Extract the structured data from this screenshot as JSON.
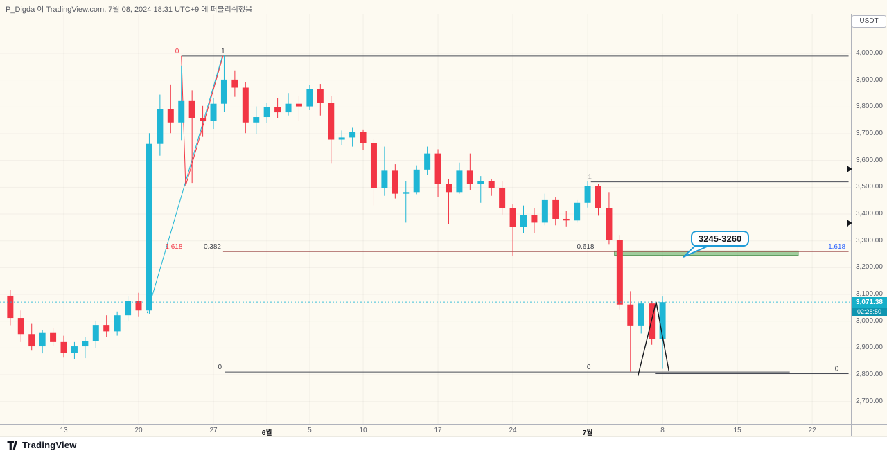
{
  "meta": {
    "attribution": "P_Digda 이 TradingView.com, 7월 08, 2024 18:31 UTC+9 에 퍼블리쉬했음"
  },
  "footer": {
    "brand": "TradingView"
  },
  "price_axis": {
    "currency_label": "USDT",
    "last_price": "3,071.38",
    "countdown": "02:28:50",
    "ticks": [
      "2,700.00",
      "2,800.00",
      "2,900.00",
      "3,000.00",
      "3,100.00",
      "3,200.00",
      "3,300.00",
      "3,400.00",
      "3,500.00",
      "3,600.00",
      "3,700.00",
      "3,800.00",
      "3,900.00",
      "4,000.00"
    ]
  },
  "time_axis": {
    "ticks": [
      {
        "label": "13",
        "day": 5
      },
      {
        "label": "20",
        "day": 12
      },
      {
        "label": "27",
        "day": 19
      },
      {
        "label": "6월",
        "day": 24,
        "month": true
      },
      {
        "label": "5",
        "day": 28
      },
      {
        "label": "10",
        "day": 33
      },
      {
        "label": "17",
        "day": 40
      },
      {
        "label": "24",
        "day": 47
      },
      {
        "label": "7월",
        "day": 54,
        "month": true
      },
      {
        "label": "8",
        "day": 61
      },
      {
        "label": "15",
        "day": 68
      },
      {
        "label": "22",
        "day": 75
      }
    ]
  },
  "colors": {
    "up": "#1fb6d5",
    "down": "#f23645",
    "label_bg": "#17afc9",
    "countdown_bg": "#0f95b0",
    "fib_red": "#f23645",
    "fib_blue": "#2962ff",
    "line_dark": "#4a4d57",
    "line_maroon": "#953d3d",
    "zone_green": "#43a047",
    "callout_border": "#1e9bd7"
  },
  "chart_data": {
    "type": "candlestick",
    "quote_currency": "USDT",
    "last_price": 3071.38,
    "ylim": [
      2617,
      4147
    ],
    "x_ticks": [
      "13",
      "20",
      "27",
      "6월",
      "5",
      "10",
      "17",
      "24",
      "7월",
      "8",
      "15",
      "22"
    ],
    "y_ticks": [
      2700,
      2800,
      2900,
      3000,
      3100,
      3200,
      3300,
      3400,
      3500,
      3600,
      3700,
      3800,
      3900,
      4000
    ],
    "dates": [
      "5/8",
      "5/9",
      "5/10",
      "5/11",
      "5/12",
      "5/13",
      "5/14",
      "5/15",
      "5/16",
      "5/17",
      "5/18",
      "5/19",
      "5/20",
      "5/21",
      "5/22",
      "5/23",
      "5/24",
      "5/25",
      "5/26",
      "5/27",
      "5/28",
      "5/29",
      "5/30",
      "5/31",
      "6/1",
      "6/2",
      "6/3",
      "6/4",
      "6/5",
      "6/6",
      "6/7",
      "6/8",
      "6/9",
      "6/10",
      "6/11",
      "6/12",
      "6/13",
      "6/14",
      "6/15",
      "6/16",
      "6/17",
      "6/18",
      "6/19",
      "6/20",
      "6/21",
      "6/22",
      "6/23",
      "6/24",
      "6/25",
      "6/26",
      "6/27",
      "6/28",
      "6/29",
      "6/30",
      "7/1",
      "7/2",
      "7/3",
      "7/4",
      "7/5",
      "7/6",
      "7/7",
      "7/8"
    ],
    "candles": [
      [
        3095,
        3118,
        2985,
        3012
      ],
      [
        3012,
        3040,
        2922,
        2952
      ],
      [
        2952,
        2990,
        2890,
        2906
      ],
      [
        2906,
        2966,
        2880,
        2956
      ],
      [
        2956,
        2976,
        2906,
        2922
      ],
      [
        2922,
        2946,
        2864,
        2882
      ],
      [
        2882,
        2922,
        2858,
        2906
      ],
      [
        2906,
        2942,
        2862,
        2926
      ],
      [
        2926,
        3002,
        2900,
        2986
      ],
      [
        2986,
        3022,
        2940,
        2962
      ],
      [
        2962,
        3036,
        2946,
        3022
      ],
      [
        3022,
        3092,
        3002,
        3076
      ],
      [
        3076,
        3106,
        3018,
        3040
      ],
      [
        3040,
        3702,
        3028,
        3662
      ],
      [
        3662,
        3846,
        3618,
        3792
      ],
      [
        3792,
        3884,
        3702,
        3742
      ],
      [
        3742,
        3954,
        3676,
        3822
      ],
      [
        3822,
        3862,
        3516,
        3758
      ],
      [
        3758,
        3804,
        3688,
        3748
      ],
      [
        3748,
        3832,
        3718,
        3812
      ],
      [
        3812,
        3992,
        3782,
        3902
      ],
      [
        3902,
        3936,
        3838,
        3872
      ],
      [
        3872,
        3892,
        3702,
        3742
      ],
      [
        3742,
        3802,
        3700,
        3762
      ],
      [
        3762,
        3816,
        3740,
        3800
      ],
      [
        3800,
        3832,
        3758,
        3780
      ],
      [
        3780,
        3852,
        3768,
        3812
      ],
      [
        3812,
        3842,
        3748,
        3802
      ],
      [
        3802,
        3882,
        3788,
        3866
      ],
      [
        3866,
        3886,
        3768,
        3816
      ],
      [
        3816,
        3840,
        3588,
        3678
      ],
      [
        3678,
        3712,
        3658,
        3686
      ],
      [
        3686,
        3722,
        3652,
        3706
      ],
      [
        3706,
        3716,
        3638,
        3664
      ],
      [
        3664,
        3680,
        3432,
        3498
      ],
      [
        3498,
        3652,
        3468,
        3562
      ],
      [
        3562,
        3586,
        3458,
        3476
      ],
      [
        3476,
        3522,
        3368,
        3482
      ],
      [
        3482,
        3582,
        3474,
        3566
      ],
      [
        3566,
        3652,
        3546,
        3626
      ],
      [
        3626,
        3642,
        3464,
        3512
      ],
      [
        3512,
        3532,
        3362,
        3482
      ],
      [
        3482,
        3592,
        3476,
        3562
      ],
      [
        3562,
        3626,
        3488,
        3512
      ],
      [
        3512,
        3542,
        3442,
        3522
      ],
      [
        3522,
        3532,
        3468,
        3496
      ],
      [
        3496,
        3522,
        3398,
        3422
      ],
      [
        3422,
        3436,
        3245,
        3352
      ],
      [
        3352,
        3432,
        3328,
        3396
      ],
      [
        3396,
        3422,
        3328,
        3368
      ],
      [
        3368,
        3476,
        3358,
        3452
      ],
      [
        3452,
        3462,
        3358,
        3382
      ],
      [
        3382,
        3412,
        3354,
        3376
      ],
      [
        3376,
        3452,
        3368,
        3442
      ],
      [
        3442,
        3524,
        3424,
        3506
      ],
      [
        3506,
        3512,
        3394,
        3422
      ],
      [
        3422,
        3482,
        3288,
        3302
      ],
      [
        3302,
        3322,
        3044,
        3062
      ],
      [
        3062,
        3112,
        2812,
        2984
      ],
      [
        2984,
        3076,
        2954,
        3066
      ],
      [
        3066,
        3076,
        2912,
        2932
      ],
      [
        2932,
        3092,
        2822,
        3071
      ]
    ],
    "annotations": {
      "horizontal_lines": [
        {
          "price": 3990,
          "from_day": 16.0,
          "to_day": 78.4,
          "color": "dark",
          "labels": [
            {
              "text": "0",
              "day": 15.6,
              "color": "red"
            },
            {
              "text": "1",
              "day": 19.9,
              "color": "dark"
            }
          ]
        },
        {
          "price": 3260,
          "from_day": 19.9,
          "to_day": 78.4,
          "color": "maroon",
          "labels": [
            {
              "text": "1.618",
              "day": 15.3,
              "color": "red"
            },
            {
              "text": "0.382",
              "day": 18.9,
              "color": "dark"
            },
            {
              "text": "0.618",
              "day": 53.8,
              "color": "dark"
            },
            {
              "text": "1.618",
              "day": 77.3,
              "color": "blue"
            }
          ]
        },
        {
          "price": 3520,
          "from_day": 54.3,
          "to_day": 78.4,
          "color": "dark",
          "labels": [
            {
              "text": "1",
              "day": 54.2,
              "color": "dark"
            }
          ]
        },
        {
          "price": 2810,
          "from_day": 20.1,
          "to_day": 72.9,
          "color": "dark",
          "labels": [
            {
              "text": "0",
              "day": 19.6,
              "color": "dark"
            },
            {
              "text": "0",
              "day": 54.1,
              "color": "dark"
            }
          ]
        },
        {
          "price": 2804,
          "from_day": 60.3,
          "to_day": 78.4,
          "color": "dark",
          "labels": [
            {
              "text": "0",
              "day": 77.3,
              "color": "dark"
            }
          ]
        }
      ],
      "zigzag_red": [
        [
          16.0,
          3990
        ],
        [
          16.4,
          3505
        ],
        [
          19.9,
          3990
        ]
      ],
      "trendline_teal": [
        [
          12.8,
          3030
        ],
        [
          19.8,
          3985
        ]
      ],
      "black_triangle": [
        [
          58.7,
          2795
        ],
        [
          60.4,
          3072
        ],
        [
          61.6,
          2813
        ]
      ],
      "zone": {
        "label": "3245-3260",
        "price_top": 3262,
        "price_bottom": 3246,
        "from_day": 56.5,
        "to_day": 73.7
      },
      "callout": {
        "text": "3245-3260"
      },
      "last_price_line": 3071.38
    }
  }
}
